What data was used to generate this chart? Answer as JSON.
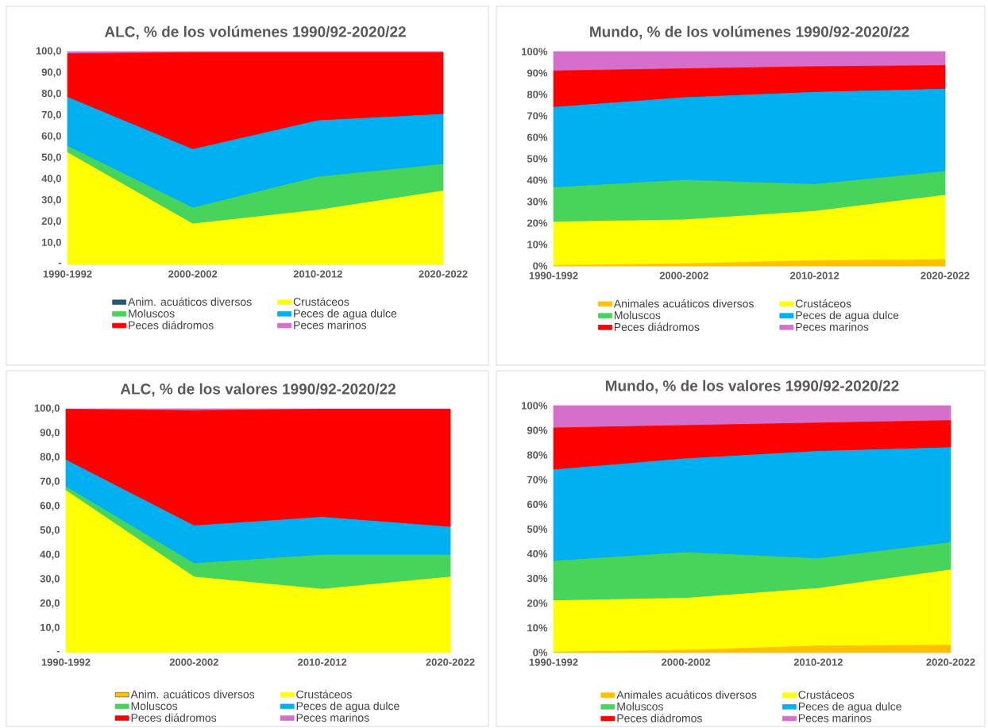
{
  "chart_data": [
    {
      "type": "area",
      "stacked": true,
      "title": "ALC, % de los volúmenes 1990/92-2020/22",
      "categories": [
        "1990-1992",
        "2000-2002",
        "2010-2012",
        "2020-2022"
      ],
      "ylim": [
        0,
        100
      ],
      "yticks": [
        {
          "value": 0,
          "label": "-"
        },
        {
          "value": 10,
          "label": "10,0"
        },
        {
          "value": 20,
          "label": "20,0"
        },
        {
          "value": 30,
          "label": "30,0"
        },
        {
          "value": 40,
          "label": "40,0"
        },
        {
          "value": 50,
          "label": "50,0"
        },
        {
          "value": 60,
          "label": "60,0"
        },
        {
          "value": 70,
          "label": "70,0"
        },
        {
          "value": 80,
          "label": "80,0"
        },
        {
          "value": 90,
          "label": "90,0"
        },
        {
          "value": 100,
          "label": "100,0"
        }
      ],
      "legend": "bottom",
      "series": [
        {
          "name": "Anim. acuáticos diversos",
          "color": "#1f5c7a",
          "values": [
            null,
            null,
            null,
            null
          ]
        },
        {
          "name": "Crustáceos",
          "color": "#ffff00",
          "values": [
            52.5,
            19,
            25.5,
            34.5
          ]
        },
        {
          "name": "Moluscos",
          "color": "#47d45a",
          "values": [
            3,
            7.5,
            15.5,
            12.5
          ]
        },
        {
          "name": "Peces de agua dulce",
          "color": "#00b0f0",
          "values": [
            23,
            27.5,
            26.5,
            23.5
          ]
        },
        {
          "name": "Peces diádromos",
          "color": "#ff0000",
          "values": [
            20.5,
            45.5,
            32,
            29
          ]
        },
        {
          "name": "Peces marinos",
          "color": "#d66fcc",
          "values": [
            1,
            0.5,
            0.5,
            0.5
          ]
        }
      ]
    },
    {
      "type": "area",
      "stacked": true,
      "title": "Mundo, % de los volúmenes 1990/92-2020/22",
      "categories": [
        "1990-1992",
        "2000-2002",
        "2010-2012",
        "2020-2022"
      ],
      "ylim": [
        0,
        100
      ],
      "yticks": [
        {
          "value": 0,
          "label": "0%"
        },
        {
          "value": 10,
          "label": "10%"
        },
        {
          "value": 20,
          "label": "20%"
        },
        {
          "value": 30,
          "label": "30%"
        },
        {
          "value": 40,
          "label": "40%"
        },
        {
          "value": 50,
          "label": "50%"
        },
        {
          "value": 60,
          "label": "60%"
        },
        {
          "value": 70,
          "label": "70%"
        },
        {
          "value": 80,
          "label": "80%"
        },
        {
          "value": 90,
          "label": "90%"
        },
        {
          "value": 100,
          "label": "100%"
        }
      ],
      "legend": "bottom",
      "series": [
        {
          "name": "Animales acuáticos diversos",
          "color": "#ffc000",
          "values": [
            0.2,
            1,
            2.5,
            3
          ]
        },
        {
          "name": "Crustáceos",
          "color": "#ffff00",
          "values": [
            20.3,
            20.5,
            23,
            30
          ]
        },
        {
          "name": "Moluscos",
          "color": "#47d45a",
          "values": [
            16,
            18.5,
            12.5,
            11
          ]
        },
        {
          "name": "Peces de agua dulce",
          "color": "#00b0f0",
          "values": [
            37.5,
            38.5,
            43,
            38.5
          ]
        },
        {
          "name": "Peces diádromos",
          "color": "#ff0000",
          "values": [
            17,
            13.5,
            12,
            11
          ]
        },
        {
          "name": "Peces marinos",
          "color": "#d66fcc",
          "values": [
            9,
            8,
            7,
            6.5
          ]
        }
      ]
    },
    {
      "type": "area",
      "stacked": true,
      "title": "ALC, % de los valores 1990/92-2020/22",
      "categories": [
        "1990-1992",
        "2000-2002",
        "2010-2012",
        "2020-2022"
      ],
      "ylim": [
        0,
        100
      ],
      "yticks": [
        {
          "value": 0,
          "label": "-"
        },
        {
          "value": 10,
          "label": "10,0"
        },
        {
          "value": 20,
          "label": "20,0"
        },
        {
          "value": 30,
          "label": "30,0"
        },
        {
          "value": 40,
          "label": "40,0"
        },
        {
          "value": 50,
          "label": "50,0"
        },
        {
          "value": 60,
          "label": "60,0"
        },
        {
          "value": 70,
          "label": "70,0"
        },
        {
          "value": 80,
          "label": "80,0"
        },
        {
          "value": 90,
          "label": "90,0"
        },
        {
          "value": 100,
          "label": "100,0"
        }
      ],
      "legend": "bottom",
      "series": [
        {
          "name": "Anim. acuáticos diversos",
          "color": "#ffc000",
          "values": [
            null,
            null,
            null,
            null
          ]
        },
        {
          "name": "Crustáceos",
          "color": "#ffff00",
          "values": [
            66.5,
            31,
            26,
            31
          ]
        },
        {
          "name": "Moluscos",
          "color": "#47d45a",
          "values": [
            1.5,
            5.5,
            14,
            9
          ]
        },
        {
          "name": "Peces de agua dulce",
          "color": "#00b0f0",
          "values": [
            11,
            15.5,
            15.5,
            11.5
          ]
        },
        {
          "name": "Peces diádromos",
          "color": "#ff0000",
          "values": [
            20.8,
            47.3,
            44.3,
            48.3
          ]
        },
        {
          "name": "Peces marinos",
          "color": "#d66fcc",
          "values": [
            0.2,
            0.7,
            0.2,
            0.2
          ]
        }
      ]
    },
    {
      "type": "area",
      "stacked": true,
      "title": "Mundo, % de los valores 1990/92-2020/22",
      "categories": [
        "1990-1992",
        "2000-2002",
        "2010-2012",
        "2020-2022"
      ],
      "ylim": [
        0,
        100
      ],
      "yticks": [
        {
          "value": 0,
          "label": "0%"
        },
        {
          "value": 10,
          "label": "10%"
        },
        {
          "value": 20,
          "label": "20%"
        },
        {
          "value": 30,
          "label": "30%"
        },
        {
          "value": 40,
          "label": "40%"
        },
        {
          "value": 50,
          "label": "50%"
        },
        {
          "value": 60,
          "label": "60%"
        },
        {
          "value": 70,
          "label": "70%"
        },
        {
          "value": 80,
          "label": "80%"
        },
        {
          "value": 90,
          "label": "90%"
        },
        {
          "value": 100,
          "label": "100%"
        }
      ],
      "legend": "bottom",
      "series": [
        {
          "name": "Animales acuáticos diversos",
          "color": "#ffc000",
          "values": [
            0.2,
            1,
            2.7,
            3
          ]
        },
        {
          "name": "Crustáceos",
          "color": "#ffff00",
          "values": [
            20.8,
            21,
            23.3,
            30.5
          ]
        },
        {
          "name": "Moluscos",
          "color": "#47d45a",
          "values": [
            16,
            18.5,
            12,
            11
          ]
        },
        {
          "name": "Peces de agua dulce",
          "color": "#00b0f0",
          "values": [
            37,
            38,
            43.5,
            38.5
          ]
        },
        {
          "name": "Peces diádromos",
          "color": "#ff0000",
          "values": [
            17,
            13.5,
            11.5,
            11
          ]
        },
        {
          "name": "Peces marinos",
          "color": "#d66fcc",
          "values": [
            9,
            8,
            7,
            6
          ]
        }
      ]
    }
  ]
}
